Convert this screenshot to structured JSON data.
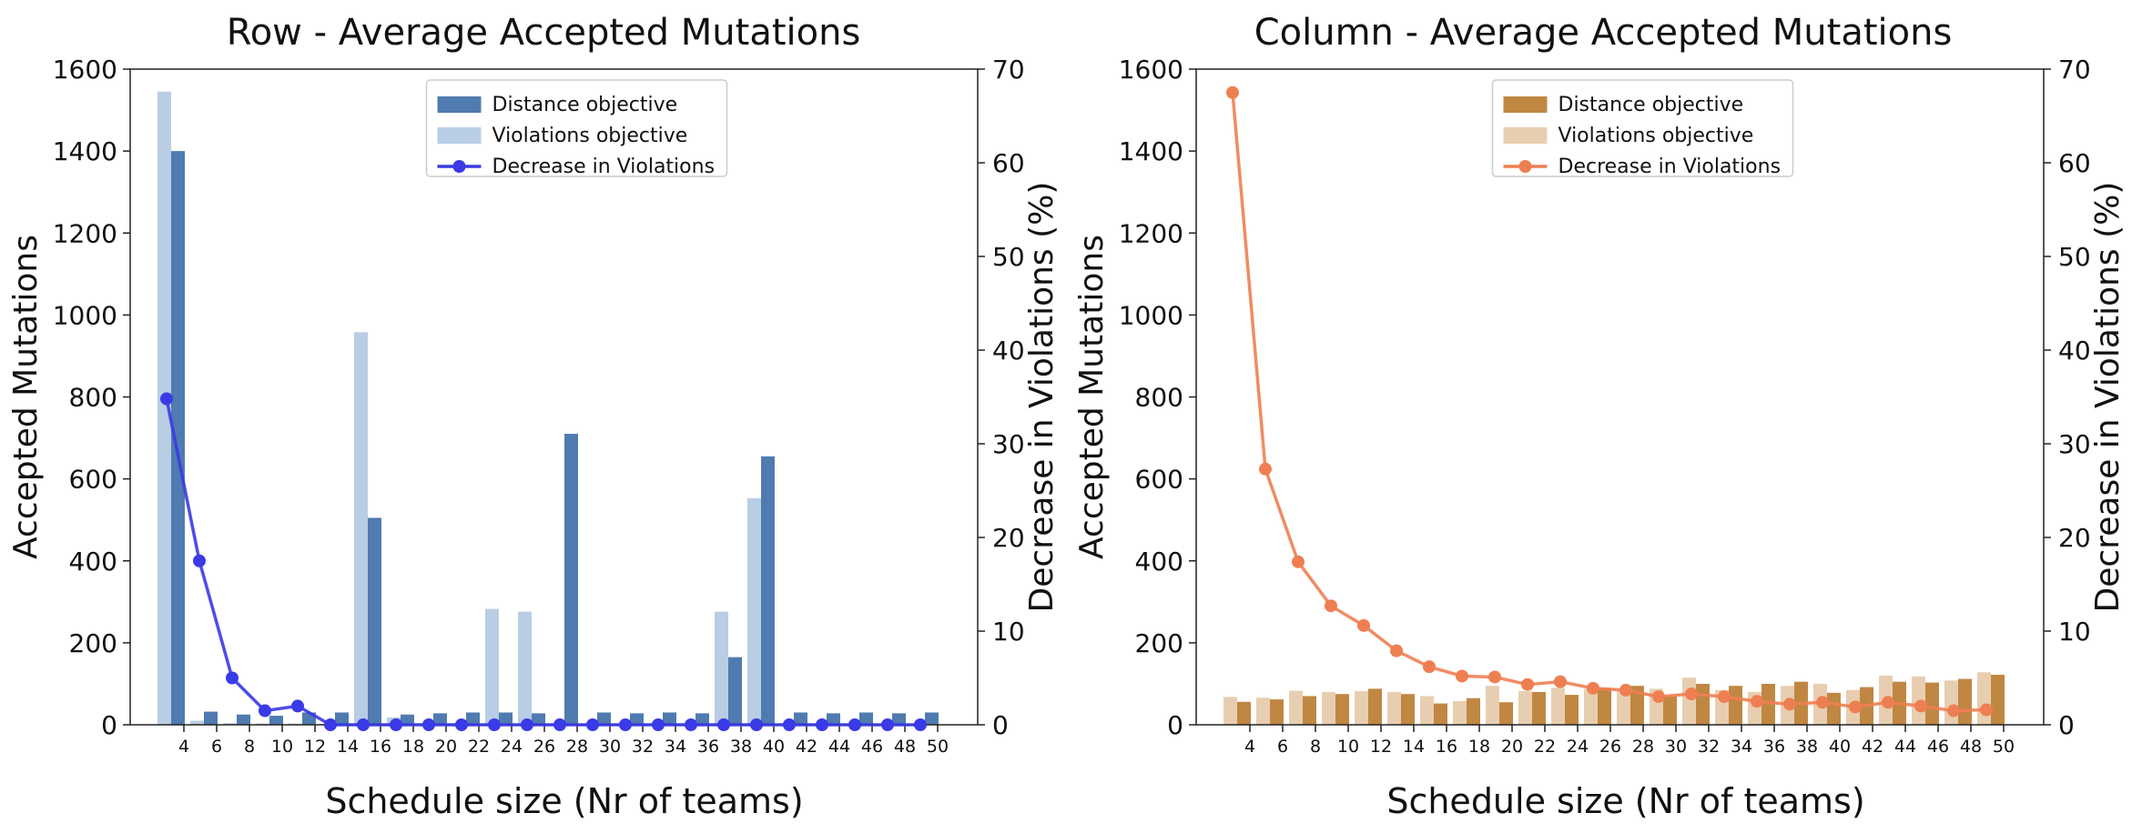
{
  "chart_data": [
    {
      "type": "bar",
      "title": "Row - Average Accepted Mutations",
      "xlabel": "Schedule size (Nr of teams)",
      "ylabel": "Accepted Mutations",
      "y2label": "Decrease in Violations (%)",
      "ylim": [
        0,
        1600
      ],
      "y2lim": [
        0,
        70
      ],
      "yticks": [
        "0",
        "200",
        "400",
        "600",
        "800",
        "1000",
        "1200",
        "1400",
        "1600"
      ],
      "y2ticks": [
        "0",
        "10",
        "20",
        "30",
        "40",
        "50",
        "60",
        "70"
      ],
      "categories": [
        "4",
        "6",
        "8",
        "10",
        "12",
        "14",
        "16",
        "18",
        "20",
        "22",
        "24",
        "26",
        "28",
        "30",
        "32",
        "34",
        "36",
        "38",
        "40",
        "42",
        "44",
        "46",
        "48",
        "50"
      ],
      "legend_position": "top-center",
      "series": [
        {
          "name": "Distance objective",
          "kind": "bar",
          "axis": "left",
          "color": "#4f7bb0",
          "values": [
            1400,
            32,
            25,
            22,
            30,
            30,
            505,
            25,
            28,
            30,
            30,
            28,
            710,
            30,
            28,
            30,
            28,
            165,
            655,
            30,
            28,
            30,
            28,
            30
          ]
        },
        {
          "name": "Violations objective",
          "kind": "bar",
          "axis": "left",
          "color": "#b9cde4",
          "values": [
            1545,
            10,
            4,
            3,
            3,
            2,
            958,
            18,
            2,
            2,
            283,
            276,
            2,
            2,
            2,
            2,
            2,
            276,
            553,
            2,
            2,
            2,
            2,
            2
          ]
        },
        {
          "name": "Decrease in Violations",
          "kind": "line",
          "axis": "right",
          "color": "#3a3ae6",
          "values": [
            34.8,
            17.5,
            5.0,
            1.5,
            2.0,
            0,
            0,
            0,
            0,
            0,
            0,
            0,
            0,
            0,
            0,
            0,
            0,
            0,
            0,
            0,
            0,
            0,
            0,
            0
          ]
        }
      ]
    },
    {
      "type": "bar",
      "title": "Column - Average Accepted Mutations",
      "xlabel": "Schedule size (Nr of teams)",
      "ylabel": "Accepted Mutations",
      "y2label": "Decrease in Violations (%)",
      "ylim": [
        0,
        1600
      ],
      "y2lim": [
        0,
        70
      ],
      "yticks": [
        "0",
        "200",
        "400",
        "600",
        "800",
        "1000",
        "1200",
        "1400",
        "1600"
      ],
      "y2ticks": [
        "0",
        "10",
        "20",
        "30",
        "40",
        "50",
        "60",
        "70"
      ],
      "categories": [
        "4",
        "6",
        "8",
        "10",
        "12",
        "14",
        "16",
        "18",
        "20",
        "22",
        "24",
        "26",
        "28",
        "30",
        "32",
        "34",
        "36",
        "38",
        "40",
        "42",
        "44",
        "46",
        "48",
        "50"
      ],
      "legend_position": "top-center",
      "series": [
        {
          "name": "Distance objective",
          "kind": "bar",
          "axis": "left",
          "color": "#c08743",
          "values": [
            56,
            62,
            70,
            75,
            88,
            75,
            52,
            65,
            55,
            80,
            73,
            90,
            95,
            70,
            100,
            95,
            100,
            105,
            78,
            92,
            105,
            103,
            112,
            122
          ]
        },
        {
          "name": "Violations objective",
          "kind": "bar",
          "axis": "left",
          "color": "#e8ceb0",
          "values": [
            68,
            66,
            83,
            80,
            82,
            80,
            70,
            58,
            95,
            82,
            90,
            88,
            85,
            88,
            115,
            85,
            80,
            95,
            100,
            85,
            120,
            118,
            108,
            128
          ]
        },
        {
          "name": "Decrease in Violations",
          "kind": "line",
          "axis": "right",
          "color": "#ee7f52",
          "values": [
            67.5,
            27.3,
            17.4,
            12.7,
            10.6,
            7.9,
            6.2,
            5.2,
            5.1,
            4.3,
            4.6,
            3.9,
            3.7,
            3.0,
            3.3,
            3.0,
            2.5,
            2.2,
            2.4,
            1.9,
            2.4,
            2.0,
            1.5,
            1.6
          ]
        }
      ]
    }
  ]
}
